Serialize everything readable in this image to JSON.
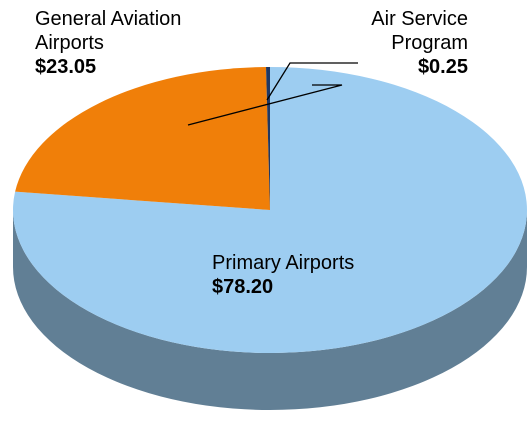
{
  "chart_data": {
    "type": "pie3d",
    "categories": [
      "Primary Airports",
      "General Aviation Airports",
      "Air Service Program"
    ],
    "values": [
      78.2,
      23.05,
      0.25
    ],
    "value_labels": [
      "$78.20",
      "$23.05",
      "$0.25"
    ],
    "colors": [
      "#9dcdf1",
      "#f07f09",
      "#1f3864"
    ]
  }
}
